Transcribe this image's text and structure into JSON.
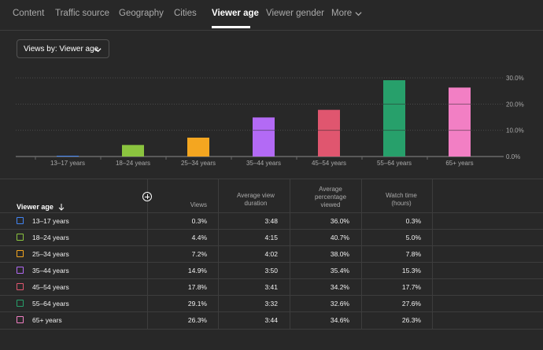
{
  "tabs": [
    {
      "label": "Content",
      "active": false
    },
    {
      "label": "Traffic source",
      "active": false
    },
    {
      "label": "Geography",
      "active": false
    },
    {
      "label": "Cities",
      "active": false
    },
    {
      "label": "Viewer age",
      "active": true
    },
    {
      "label": "Viewer gender",
      "active": false
    },
    {
      "label": "More",
      "active": false
    }
  ],
  "icons": {
    "more": "chevron-down-icon",
    "dropdown": "chevron-down-icon",
    "sort": "arrow-down-icon",
    "add": "add-circle-icon"
  },
  "dropdown": {
    "label": "Views by: Viewer age"
  },
  "chart_data": {
    "type": "bar",
    "categories": [
      "13–17 years",
      "18–24 years",
      "25–34 years",
      "35–44 years",
      "45–54 years",
      "55–64 years",
      "65+ years"
    ],
    "values": [
      0.3,
      4.4,
      7.2,
      14.9,
      17.8,
      29.1,
      26.3
    ],
    "colors": [
      "#4285f4",
      "#8bc43f",
      "#f4a620",
      "#b36af5",
      "#e0566f",
      "#27a06b",
      "#f27fc4"
    ],
    "ylim": [
      0,
      30
    ],
    "yticks": [
      "0.0%",
      "10.0%",
      "20.0%",
      "30.0%"
    ],
    "grid": true,
    "title": "",
    "xlabel": "",
    "ylabel": ""
  },
  "table": {
    "headers": {
      "age": "Viewer age",
      "views": "Views",
      "avg_duration": [
        "Average view",
        "duration"
      ],
      "avg_pct": [
        "Average",
        "percentage",
        "viewed"
      ],
      "watch_time": [
        "Watch time",
        "(hours)"
      ]
    },
    "rows": [
      {
        "age": "13–17 years",
        "views": "0.3%",
        "avg_duration": "3:48",
        "avg_pct": "36.0%",
        "watch_time": "0.3%",
        "color": "#4285f4"
      },
      {
        "age": "18–24 years",
        "views": "4.4%",
        "avg_duration": "4:15",
        "avg_pct": "40.7%",
        "watch_time": "5.0%",
        "color": "#8bc43f"
      },
      {
        "age": "25–34 years",
        "views": "7.2%",
        "avg_duration": "4:02",
        "avg_pct": "38.0%",
        "watch_time": "7.8%",
        "color": "#f4a620"
      },
      {
        "age": "35–44 years",
        "views": "14.9%",
        "avg_duration": "3:50",
        "avg_pct": "35.4%",
        "watch_time": "15.3%",
        "color": "#b36af5"
      },
      {
        "age": "45–54 years",
        "views": "17.8%",
        "avg_duration": "3:41",
        "avg_pct": "34.2%",
        "watch_time": "17.7%",
        "color": "#e0566f"
      },
      {
        "age": "55–64 years",
        "views": "29.1%",
        "avg_duration": "3:32",
        "avg_pct": "32.6%",
        "watch_time": "27.6%",
        "color": "#27a06b"
      },
      {
        "age": "65+ years",
        "views": "26.3%",
        "avg_duration": "3:44",
        "avg_pct": "34.6%",
        "watch_time": "26.3%",
        "color": "#f27fc4"
      }
    ]
  }
}
